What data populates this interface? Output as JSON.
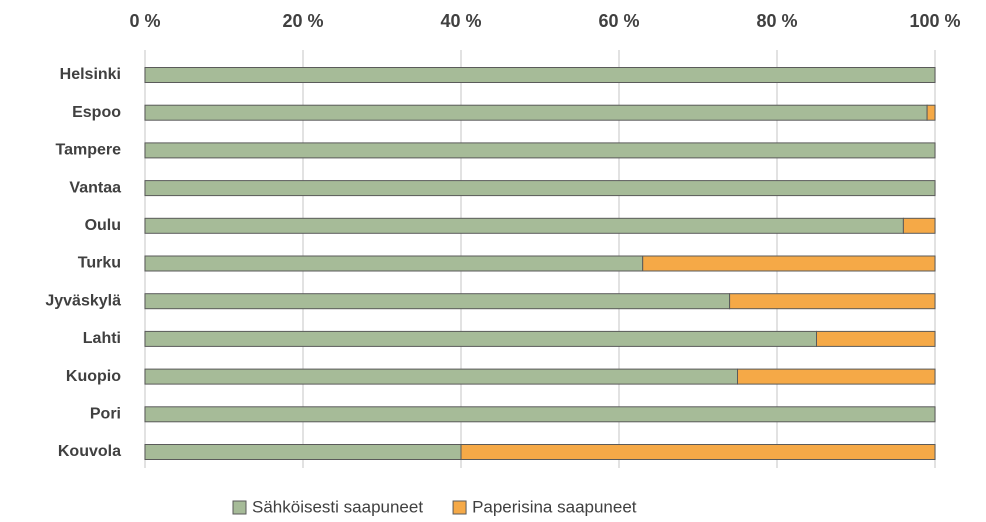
{
  "chart_data": {
    "type": "stacked_barh",
    "categories": [
      "Helsinki",
      "Espoo",
      "Tampere",
      "Vantaa",
      "Oulu",
      "Turku",
      "Jyväskylä",
      "Lahti",
      "Kuopio",
      "Pori",
      "Kouvola"
    ],
    "series": [
      {
        "name": "Sähköisesti saapuneet",
        "color": "#a6bb98",
        "values": [
          100,
          99,
          100,
          100,
          96,
          63,
          74,
          85,
          75,
          100,
          40
        ]
      },
      {
        "name": "Paperisina saapuneet",
        "color": "#f5a947",
        "values": [
          0,
          1,
          0,
          0,
          4,
          37,
          26,
          15,
          25,
          0,
          60
        ]
      }
    ],
    "xlim": [
      0,
      100
    ],
    "xticks": [
      {
        "value": 0,
        "label": "0 %"
      },
      {
        "value": 20,
        "label": "20 %"
      },
      {
        "value": 40,
        "label": "40 %"
      },
      {
        "value": 60,
        "label": "60 %"
      },
      {
        "value": 80,
        "label": "80 %"
      },
      {
        "value": 100,
        "label": "100 %"
      }
    ],
    "grid": true,
    "legend": "bottom"
  }
}
